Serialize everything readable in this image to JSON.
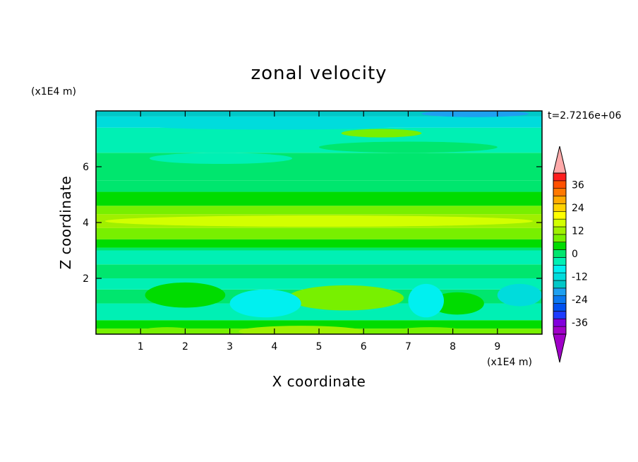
{
  "chart_data": {
    "type": "heatmap",
    "title": "zonal velocity",
    "xlabel": "X coordinate",
    "ylabel": "Z coordinate",
    "x_unit": "(x1E4 m)",
    "y_unit": "(x1E4 m)",
    "time_label": "t=2.7216e+06",
    "xlim": [
      0,
      10
    ],
    "ylim": [
      0,
      8
    ],
    "x_ticks": [
      "1",
      "2",
      "3",
      "4",
      "5",
      "6",
      "7",
      "8",
      "9"
    ],
    "x_tick_values": [
      1,
      2,
      3,
      4,
      5,
      6,
      7,
      8,
      9
    ],
    "y_ticks": [
      "2",
      "4",
      "6"
    ],
    "y_tick_values": [
      2,
      4,
      6
    ],
    "bands": [
      {
        "z0": 0.0,
        "z1": 0.2,
        "value": 9
      },
      {
        "z0": 0.2,
        "z1": 0.5,
        "value": 3
      },
      {
        "z0": 0.5,
        "z1": 1.1,
        "value": -6
      },
      {
        "z0": 1.1,
        "z1": 1.6,
        "value": 1
      },
      {
        "z0": 1.6,
        "z1": 2.0,
        "value": -3
      },
      {
        "z0": 2.0,
        "z1": 2.5,
        "value": -1
      },
      {
        "z0": 2.5,
        "z1": 3.0,
        "value": -3
      },
      {
        "z0": 3.0,
        "z1": 3.1,
        "value": 0
      },
      {
        "z0": 3.1,
        "z1": 3.4,
        "value": 4
      },
      {
        "z0": 3.4,
        "z1": 3.8,
        "value": 9
      },
      {
        "z0": 3.8,
        "z1": 4.3,
        "value": 13
      },
      {
        "z0": 4.3,
        "z1": 4.6,
        "value": 8
      },
      {
        "z0": 4.6,
        "z1": 5.1,
        "value": 3
      },
      {
        "z0": 5.1,
        "z1": 5.5,
        "value": 1
      },
      {
        "z0": 5.5,
        "z1": 6.0,
        "value": -2
      },
      {
        "z0": 6.0,
        "z1": 6.5,
        "value": 1
      },
      {
        "z0": 6.5,
        "z1": 7.0,
        "value": -4
      },
      {
        "z0": 7.0,
        "z1": 7.4,
        "value": -6
      },
      {
        "z0": 7.4,
        "z1": 7.8,
        "value": -12
      },
      {
        "z0": 7.8,
        "z1": 8.0,
        "value": -16
      }
    ],
    "patches": [
      {
        "x": 2.0,
        "z": 1.4,
        "rx": 0.9,
        "rz": 0.45,
        "value": 5
      },
      {
        "x": 5.6,
        "z": 1.3,
        "rx": 1.3,
        "rz": 0.45,
        "value": 6
      },
      {
        "x": 8.1,
        "z": 1.1,
        "rx": 0.6,
        "rz": 0.4,
        "value": 3
      },
      {
        "x": 3.8,
        "z": 1.1,
        "rx": 0.8,
        "rz": 0.5,
        "value": -10
      },
      {
        "x": 7.4,
        "z": 1.2,
        "rx": 0.4,
        "rz": 0.6,
        "value": -10
      },
      {
        "x": 9.5,
        "z": 1.4,
        "rx": 0.5,
        "rz": 0.4,
        "value": -12
      },
      {
        "x": 1.6,
        "z": 0.1,
        "rx": 0.6,
        "rz": 0.15,
        "value": 9
      },
      {
        "x": 4.6,
        "z": 0.1,
        "rx": 1.4,
        "rz": 0.2,
        "value": 10
      },
      {
        "x": 7.5,
        "z": 0.1,
        "rx": 0.8,
        "rz": 0.15,
        "value": 9
      },
      {
        "x": 6.4,
        "z": 7.2,
        "rx": 0.9,
        "rz": 0.15,
        "value": 9
      },
      {
        "x": 4.0,
        "z": 7.45,
        "rx": 2.8,
        "rz": 0.12,
        "value": -14
      },
      {
        "x": 8.5,
        "z": 7.9,
        "rx": 1.2,
        "rz": 0.12,
        "value": -20
      },
      {
        "x": 2.8,
        "z": 6.3,
        "rx": 1.6,
        "rz": 0.2,
        "value": -6
      },
      {
        "x": 7.0,
        "z": 6.7,
        "rx": 2.0,
        "rz": 0.2,
        "value": 1
      },
      {
        "x": 5.0,
        "z": 4.05,
        "rx": 4.8,
        "rz": 0.2,
        "value": 16
      }
    ],
    "colorbar": {
      "levels": [
        -42,
        -38,
        -34,
        -30,
        -26,
        -22,
        -18,
        -14,
        -10,
        -6,
        -2,
        2,
        6,
        10,
        14,
        18,
        22,
        26,
        30,
        34,
        38,
        42
      ],
      "colors": [
        "#a000c8",
        "#8200dc",
        "#1e3cff",
        "#0050f0",
        "#0a78f0",
        "#1ea0f0",
        "#00c8c8",
        "#00dcdc",
        "#00f0f0",
        "#00f0b4",
        "#00e66e",
        "#00dc00",
        "#78f000",
        "#a0f000",
        "#d2ff00",
        "#ffff00",
        "#ffd200",
        "#ffaa00",
        "#ff7800",
        "#ff5000",
        "#ff1e1e"
      ],
      "under_color": "#a000c8",
      "over_color": "#ffaaaa",
      "tick_labels": [
        "36",
        "24",
        "12",
        "0",
        "-12",
        "-24",
        "-36"
      ],
      "tick_values": [
        36,
        24,
        12,
        0,
        -12,
        -24,
        -36
      ]
    }
  }
}
